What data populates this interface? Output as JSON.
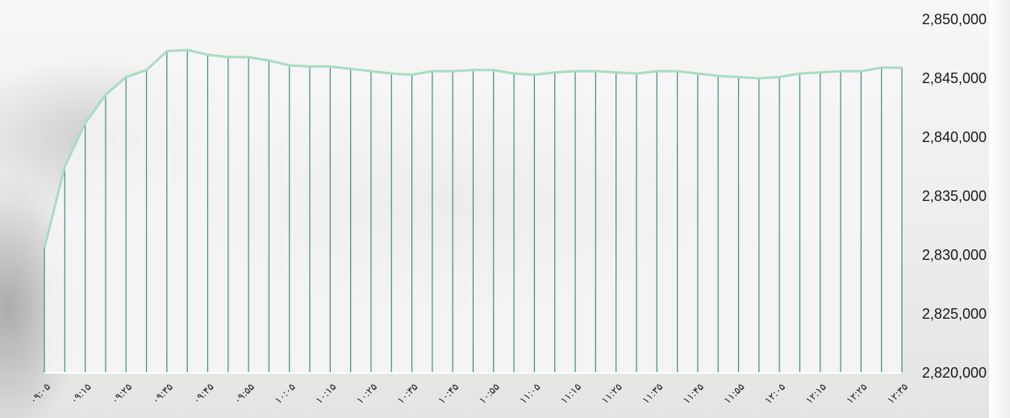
{
  "chart_data": {
    "type": "area",
    "title": "",
    "xlabel": "",
    "ylabel": "",
    "ylim": [
      2820000,
      2850000
    ],
    "y_ticks": [
      "2,820,000",
      "2,825,000",
      "2,830,000",
      "2,835,000",
      "2,840,000",
      "2,845,000",
      "2,850,000"
    ],
    "y_tick_values": [
      2820000,
      2825000,
      2830000,
      2835000,
      2840000,
      2845000,
      2850000
    ],
    "x_tick_labels": [
      "۰۹:۰۵",
      "۰۹:۱۵",
      "۰۹:۲۵",
      "۰۹:۳۵",
      "۰۹:۴۵",
      "۰۹:۵۵",
      "۱۰:۰۵",
      "۱۰:۱۵",
      "۱۰:۲۵",
      "۱۰:۳۵",
      "۱۰:۴۵",
      "۱۰:۵۵",
      "۱۱:۰۵",
      "۱۱:۱۵",
      "۱۱:۲۵",
      "۱۱:۳۵",
      "۱۱:۴۵",
      "۱۱:۵۵",
      "۱۲:۰۵",
      "۱۲:۱۵",
      "۱۲:۲۵",
      "۱۲:۳۵"
    ],
    "values": [
      2830600,
      2837500,
      2841200,
      2843600,
      2845100,
      2845700,
      2847300,
      2847400,
      2847000,
      2846800,
      2846800,
      2846500,
      2846100,
      2846000,
      2846000,
      2845800,
      2845600,
      2845400,
      2845300,
      2845600,
      2845600,
      2845700,
      2845700,
      2845400,
      2845300,
      2845500,
      2845600,
      2845600,
      2845500,
      2845400,
      2845600,
      2845600,
      2845400,
      2845200,
      2845100,
      2845000,
      2845100,
      2845400,
      2845500,
      2845600,
      2845600,
      2845900,
      2845900
    ],
    "grid": false,
    "colors": {
      "line": "#a9dcc3",
      "fill": "#f6f4f8",
      "drop_lines": "#3f8f75",
      "axis_text": "#1a1a1a"
    }
  }
}
